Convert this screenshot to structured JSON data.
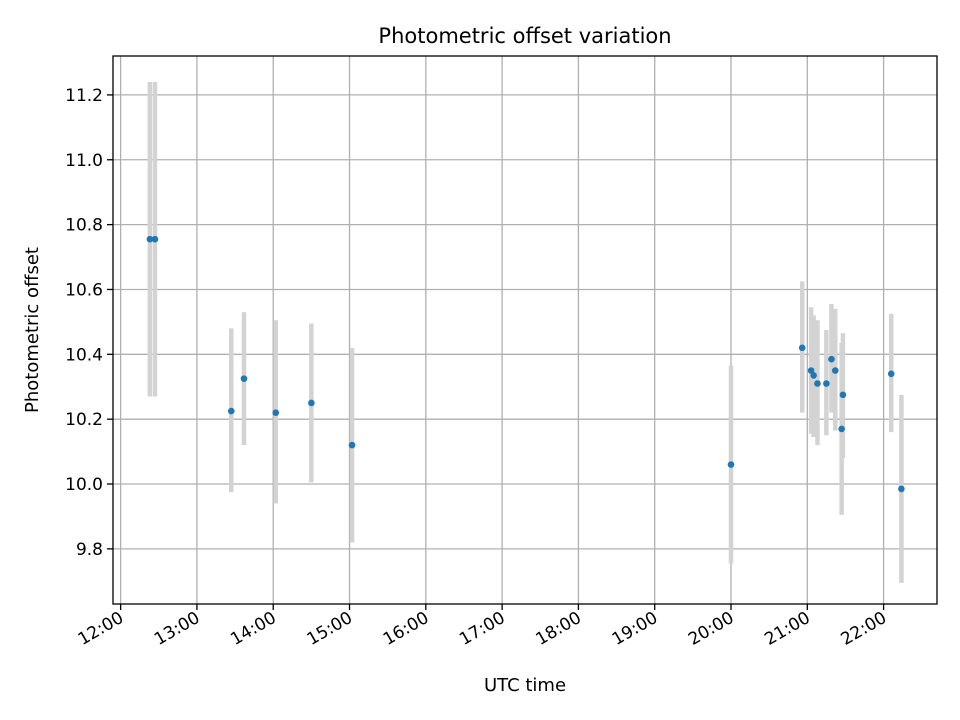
{
  "chart_data": {
    "type": "scatter",
    "title": "Photometric offset variation",
    "xlabel": "UTC time",
    "ylabel": "Photometric offset",
    "x_unit": "hour",
    "xlim": [
      "11:54",
      "22:42"
    ],
    "ylim": [
      9.63,
      11.32
    ],
    "x_ticks": [
      "12:00",
      "13:00",
      "14:00",
      "15:00",
      "16:00",
      "17:00",
      "18:00",
      "19:00",
      "20:00",
      "21:00",
      "22:00"
    ],
    "y_ticks": [
      "9.8",
      "10.0",
      "10.2",
      "10.4",
      "10.6",
      "10.8",
      "11.0",
      "11.2"
    ],
    "grid": true,
    "marker_color": "#1f77b4",
    "errorbar_color": "#d3d3d3",
    "points": [
      {
        "x": "12:23",
        "y": 10.755,
        "yerr_low": 10.27,
        "yerr_high": 11.24
      },
      {
        "x": "12:27",
        "y": 10.755,
        "yerr_low": 10.27,
        "yerr_high": 11.24
      },
      {
        "x": "13:27",
        "y": 10.225,
        "yerr_low": 9.975,
        "yerr_high": 10.48
      },
      {
        "x": "13:37",
        "y": 10.325,
        "yerr_low": 10.12,
        "yerr_high": 10.53
      },
      {
        "x": "14:02",
        "y": 10.22,
        "yerr_low": 9.94,
        "yerr_high": 10.505
      },
      {
        "x": "14:30",
        "y": 10.25,
        "yerr_low": 10.005,
        "yerr_high": 10.495
      },
      {
        "x": "15:02",
        "y": 10.12,
        "yerr_low": 9.82,
        "yerr_high": 10.42
      },
      {
        "x": "20:00",
        "y": 10.06,
        "yerr_low": 9.755,
        "yerr_high": 10.365
      },
      {
        "x": "20:56",
        "y": 10.42,
        "yerr_low": 10.22,
        "yerr_high": 10.625
      },
      {
        "x": "21:03",
        "y": 10.35,
        "yerr_low": 10.155,
        "yerr_high": 10.545
      },
      {
        "x": "21:05",
        "y": 10.335,
        "yerr_low": 10.145,
        "yerr_high": 10.52
      },
      {
        "x": "21:08",
        "y": 10.31,
        "yerr_low": 10.12,
        "yerr_high": 10.505
      },
      {
        "x": "21:15",
        "y": 10.31,
        "yerr_low": 10.15,
        "yerr_high": 10.475
      },
      {
        "x": "21:19",
        "y": 10.385,
        "yerr_low": 10.22,
        "yerr_high": 10.555
      },
      {
        "x": "21:22",
        "y": 10.35,
        "yerr_low": 10.165,
        "yerr_high": 10.54
      },
      {
        "x": "21:27",
        "y": 10.17,
        "yerr_low": 9.905,
        "yerr_high": 10.435
      },
      {
        "x": "21:28",
        "y": 10.275,
        "yerr_low": 10.08,
        "yerr_high": 10.465
      },
      {
        "x": "22:06",
        "y": 10.34,
        "yerr_low": 10.16,
        "yerr_high": 10.525
      },
      {
        "x": "22:14",
        "y": 9.985,
        "yerr_low": 9.695,
        "yerr_high": 10.275
      }
    ]
  }
}
